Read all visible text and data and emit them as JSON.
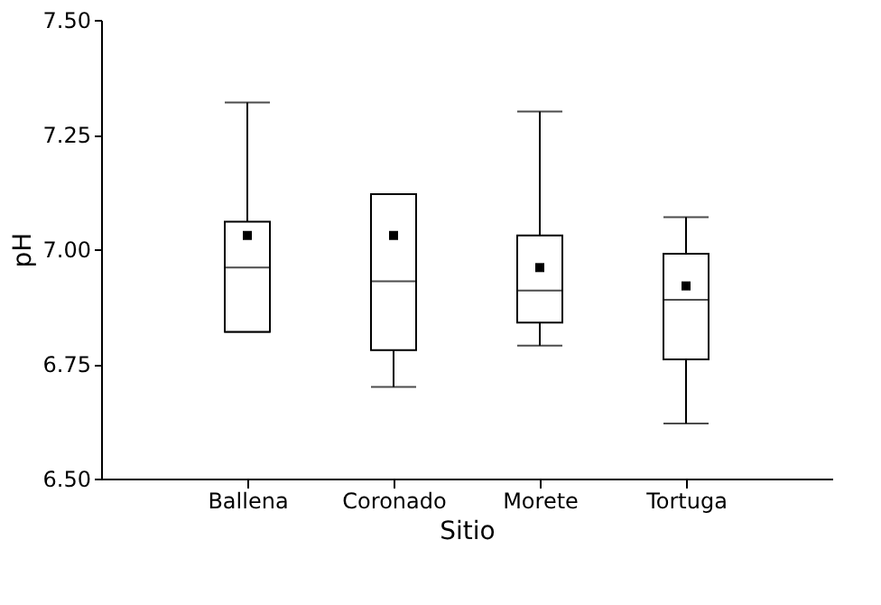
{
  "chart_data": {
    "type": "box",
    "xlabel": "Sitio",
    "ylabel": "pH",
    "categories": [
      "Ballena",
      "Coronado",
      "Morete",
      "Tortuga"
    ],
    "boxes": [
      {
        "low": 6.82,
        "q1": 6.82,
        "median": 6.96,
        "q3": 7.06,
        "high": 7.32,
        "mean": 7.03
      },
      {
        "low": 6.7,
        "q1": 6.78,
        "median": 6.93,
        "q3": 7.12,
        "high": 7.12,
        "mean": 7.03
      },
      {
        "low": 6.79,
        "q1": 6.84,
        "median": 6.91,
        "q3": 7.03,
        "high": 7.3,
        "mean": 6.96
      },
      {
        "low": 6.62,
        "q1": 6.76,
        "median": 6.89,
        "q3": 6.99,
        "high": 7.07,
        "mean": 6.92
      }
    ],
    "color": "#000000",
    "marker": "square",
    "ylim": [
      6.5,
      7.5
    ],
    "yticks": [
      {
        "value": 6.5,
        "label": "6.50"
      },
      {
        "value": 6.75,
        "label": "6.75"
      },
      {
        "value": 7.0,
        "label": "7.00"
      },
      {
        "value": 7.25,
        "label": "7.25"
      },
      {
        "value": 7.5,
        "label": "7.50"
      }
    ],
    "grid": false
  }
}
